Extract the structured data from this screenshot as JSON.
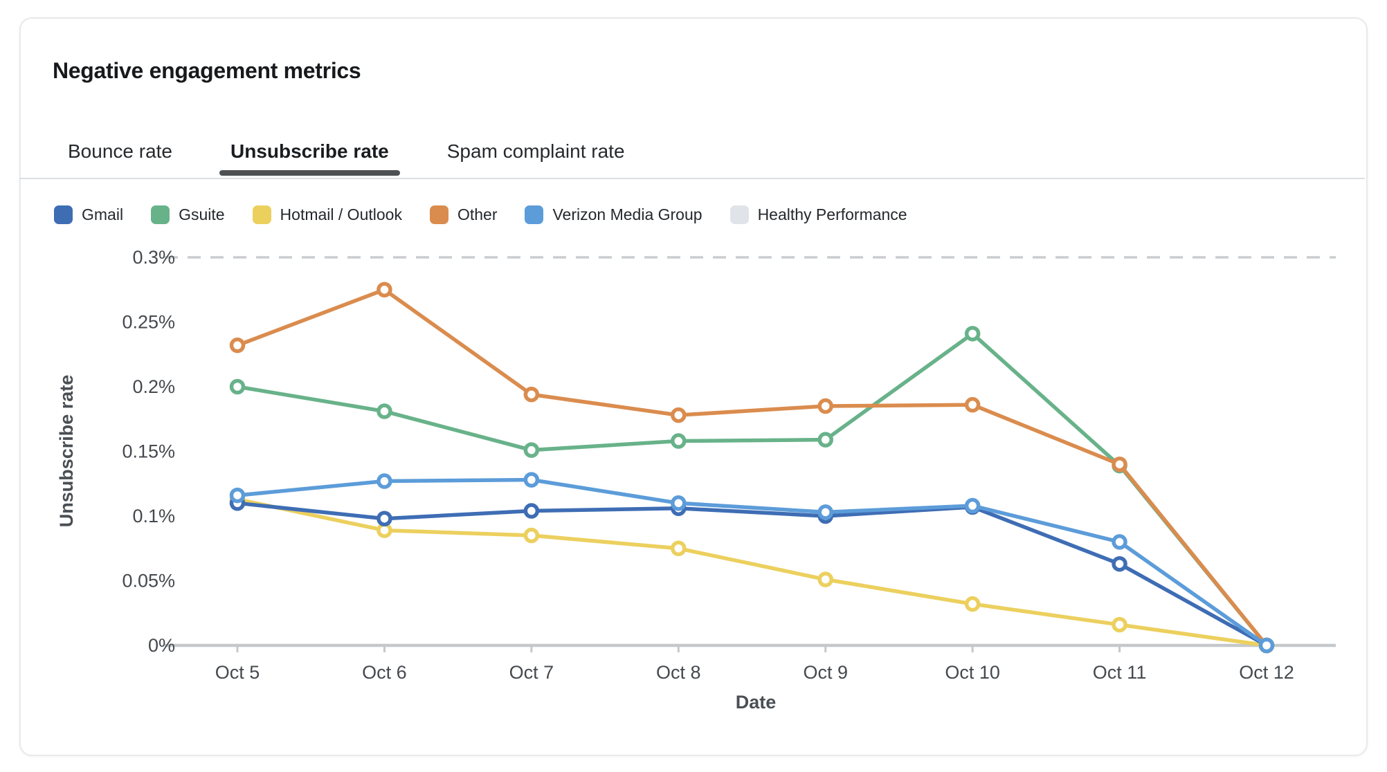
{
  "card": {
    "title": "Negative engagement metrics",
    "tabs": [
      {
        "label": "Bounce rate",
        "active": false
      },
      {
        "label": "Unsubscribe rate",
        "active": true
      },
      {
        "label": "Spam complaint rate",
        "active": false
      }
    ]
  },
  "chart_data": {
    "type": "line",
    "title": "",
    "xlabel": "Date",
    "ylabel": "Unsubscribe rate",
    "x": [
      "Oct 5",
      "Oct 6",
      "Oct 7",
      "Oct 8",
      "Oct 9",
      "Oct 10",
      "Oct 11",
      "Oct 12"
    ],
    "ylim": [
      0,
      0.3
    ],
    "y_unit": "%",
    "grid": false,
    "legend_position": "top",
    "y_ticks": [
      {
        "label": "0.3%",
        "value": 0.3
      },
      {
        "label": "0.25%",
        "value": 0.25
      },
      {
        "label": "0.2%",
        "value": 0.2
      },
      {
        "label": "0.15%",
        "value": 0.15
      },
      {
        "label": "0.1%",
        "value": 0.1
      },
      {
        "label": "0.05%",
        "value": 0.05
      },
      {
        "label": "0%",
        "value": 0
      }
    ],
    "series": [
      {
        "name": "Gmail",
        "color": "#3E6DB4",
        "values": [
          0.11,
          0.098,
          0.104,
          0.106,
          0.1,
          0.107,
          0.063,
          0
        ]
      },
      {
        "name": "Gsuite",
        "color": "#68B28A",
        "values": [
          0.2,
          0.181,
          0.151,
          0.158,
          0.159,
          0.241,
          0.139,
          0
        ]
      },
      {
        "name": "Hotmail / Outlook",
        "color": "#ECD05E",
        "values": [
          0.113,
          0.089,
          0.085,
          0.075,
          0.051,
          0.032,
          0.016,
          0
        ]
      },
      {
        "name": "Other",
        "color": "#DA8C4E",
        "values": [
          0.232,
          0.275,
          0.194,
          0.178,
          0.185,
          0.186,
          0.14,
          0
        ]
      },
      {
        "name": "Verizon Media Group",
        "color": "#5C9CD9",
        "values": [
          0.116,
          0.127,
          0.128,
          0.11,
          0.103,
          0.108,
          0.08,
          0
        ]
      }
    ],
    "threshold": {
      "name": "Healthy Performance",
      "swatch_color": "#E0E4E8",
      "line_color": "#C9CDD1",
      "value": 0.3,
      "style": "dashed"
    }
  }
}
